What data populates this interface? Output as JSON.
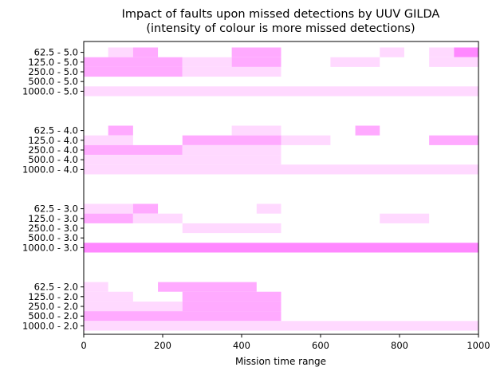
{
  "chart_data": {
    "type": "heatmap",
    "title": "Impact of faults upon missed detections by UUV GILDA",
    "subtitle": "(intensity of colour is more missed detections)",
    "xlabel": "Mission time range",
    "ylabel": "",
    "xlim": [
      0,
      1000
    ],
    "x_ticks": [
      "0",
      "200",
      "400",
      "600",
      "800",
      "1000"
    ],
    "grid": false,
    "legend": "none",
    "colors": {
      "level_1": "#ffd9ff",
      "level_2": "#ffaaff",
      "level_3": "#ff88ff"
    },
    "rows": [
      {
        "label": "62.5 - 5.0",
        "cells": [
          {
            "x": [
              62,
              125
            ],
            "level": 1
          },
          {
            "x": [
              125,
              188
            ],
            "level": 2
          },
          {
            "x": [
              375,
              500
            ],
            "level": 2
          },
          {
            "x": [
              750,
              812
            ],
            "level": 1
          },
          {
            "x": [
              875,
              938
            ],
            "level": 1
          },
          {
            "x": [
              938,
              1000
            ],
            "level": 3
          }
        ]
      },
      {
        "label": "125.0 - 5.0",
        "cells": [
          {
            "x": [
              0,
              250
            ],
            "level": 2
          },
          {
            "x": [
              250,
              375
            ],
            "level": 1
          },
          {
            "x": [
              375,
              500
            ],
            "level": 2
          },
          {
            "x": [
              625,
              750
            ],
            "level": 1
          },
          {
            "x": [
              875,
              1000
            ],
            "level": 1
          }
        ]
      },
      {
        "label": "250.0 - 5.0",
        "cells": [
          {
            "x": [
              0,
              250
            ],
            "level": 2
          },
          {
            "x": [
              250,
              500
            ],
            "level": 1
          }
        ]
      },
      {
        "label": "500.0 - 5.0",
        "cells": []
      },
      {
        "label": "1000.0 - 5.0",
        "cells": [
          {
            "x": [
              0,
              1000
            ],
            "level": 1
          }
        ]
      },
      {
        "label": "62.5 - 4.0",
        "cells": [
          {
            "x": [
              62,
              125
            ],
            "level": 2
          },
          {
            "x": [
              375,
              500
            ],
            "level": 1
          },
          {
            "x": [
              688,
              750
            ],
            "level": 2
          }
        ]
      },
      {
        "label": "125.0 - 4.0",
        "cells": [
          {
            "x": [
              0,
              125
            ],
            "level": 1
          },
          {
            "x": [
              250,
              500
            ],
            "level": 2
          },
          {
            "x": [
              500,
              625
            ],
            "level": 1
          },
          {
            "x": [
              875,
              1000
            ],
            "level": 2
          }
        ]
      },
      {
        "label": "250.0 - 4.0",
        "cells": [
          {
            "x": [
              0,
              250
            ],
            "level": 2
          },
          {
            "x": [
              250,
              500
            ],
            "level": 1
          }
        ]
      },
      {
        "label": "500.0 - 4.0",
        "cells": [
          {
            "x": [
              0,
              500
            ],
            "level": 1
          }
        ]
      },
      {
        "label": "1000.0 - 4.0",
        "cells": [
          {
            "x": [
              0,
              1000
            ],
            "level": 1
          }
        ]
      },
      {
        "label": "62.5 - 3.0",
        "cells": [
          {
            "x": [
              0,
              125
            ],
            "level": 1
          },
          {
            "x": [
              125,
              188
            ],
            "level": 2
          },
          {
            "x": [
              438,
              500
            ],
            "level": 1
          }
        ]
      },
      {
        "label": "125.0 - 3.0",
        "cells": [
          {
            "x": [
              0,
              125
            ],
            "level": 2
          },
          {
            "x": [
              125,
              250
            ],
            "level": 1
          },
          {
            "x": [
              750,
              875
            ],
            "level": 1
          }
        ]
      },
      {
        "label": "250.0 - 3.0",
        "cells": [
          {
            "x": [
              250,
              500
            ],
            "level": 1
          }
        ]
      },
      {
        "label": "500.0 - 3.0",
        "cells": []
      },
      {
        "label": "1000.0 - 3.0",
        "cells": [
          {
            "x": [
              0,
              1000
            ],
            "level": 3
          }
        ]
      },
      {
        "label": "62.5 - 2.0",
        "cells": [
          {
            "x": [
              0,
              62
            ],
            "level": 1
          },
          {
            "x": [
              188,
              438
            ],
            "level": 2
          }
        ]
      },
      {
        "label": "125.0 - 2.0",
        "cells": [
          {
            "x": [
              0,
              125
            ],
            "level": 1
          },
          {
            "x": [
              250,
              500
            ],
            "level": 2
          }
        ]
      },
      {
        "label": "250.0 - 2.0",
        "cells": [
          {
            "x": [
              0,
              250
            ],
            "level": 1
          },
          {
            "x": [
              250,
              500
            ],
            "level": 2
          }
        ]
      },
      {
        "label": "500.0 - 2.0",
        "cells": [
          {
            "x": [
              0,
              500
            ],
            "level": 2
          }
        ]
      },
      {
        "label": "1000.0 - 2.0",
        "cells": [
          {
            "x": [
              0,
              1000
            ],
            "level": 1
          }
        ]
      }
    ]
  }
}
